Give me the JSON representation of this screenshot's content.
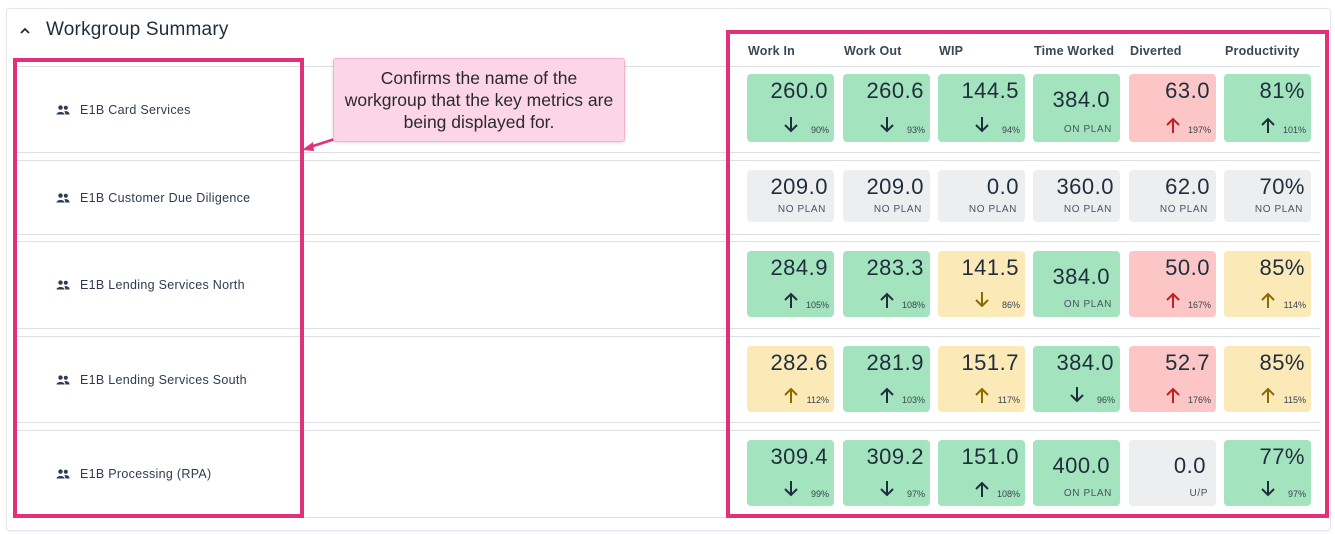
{
  "title": "Workgroup Summary",
  "columns": [
    "Work In",
    "Work Out",
    "WIP",
    "Time Worked",
    "Diverted",
    "Productivity"
  ],
  "callout": "Confirms the name of the workgroup that the key metrics are being displayed for.",
  "colors": {
    "highlight": "#e0317a",
    "callout_bg": "#fcd6e8",
    "green": "#a3e4bf",
    "grey": "#eceef0",
    "red": "#fcc6c6",
    "yellow": "#fbeab8"
  },
  "rows": [
    {
      "name": "E1B Card Services",
      "icon": "group-icon",
      "cells": [
        {
          "value": "260.0",
          "dir": "down",
          "pct": "90%",
          "color": "green"
        },
        {
          "value": "260.6",
          "dir": "down",
          "pct": "93%",
          "color": "green"
        },
        {
          "value": "144.5",
          "dir": "down",
          "pct": "94%",
          "color": "green"
        },
        {
          "value": "384.0",
          "sub": "ON PLAN",
          "color": "green"
        },
        {
          "value": "63.0",
          "dir": "up",
          "pct": "197%",
          "color": "red"
        },
        {
          "value": "81%",
          "dir": "up",
          "pct": "101%",
          "color": "green"
        }
      ]
    },
    {
      "name": "E1B Customer Due Diligence",
      "icon": "group-icon",
      "cells": [
        {
          "value": "209.0",
          "sub": "NO PLAN",
          "color": "grey"
        },
        {
          "value": "209.0",
          "sub": "NO PLAN",
          "color": "grey"
        },
        {
          "value": "0.0",
          "sub": "NO PLAN",
          "color": "grey"
        },
        {
          "value": "360.0",
          "sub": "NO PLAN",
          "color": "grey"
        },
        {
          "value": "62.0",
          "sub": "NO PLAN",
          "color": "grey"
        },
        {
          "value": "70%",
          "sub": "NO PLAN",
          "color": "grey"
        }
      ]
    },
    {
      "name": "E1B Lending Services North",
      "icon": "group-icon",
      "cells": [
        {
          "value": "284.9",
          "dir": "up",
          "pct": "105%",
          "color": "green"
        },
        {
          "value": "283.3",
          "dir": "up",
          "pct": "108%",
          "color": "green"
        },
        {
          "value": "141.5",
          "dir": "down",
          "pct": "86%",
          "color": "yellow"
        },
        {
          "value": "384.0",
          "sub": "ON PLAN",
          "color": "green"
        },
        {
          "value": "50.0",
          "dir": "up",
          "pct": "167%",
          "color": "red"
        },
        {
          "value": "85%",
          "dir": "up",
          "pct": "114%",
          "color": "yellow"
        }
      ]
    },
    {
      "name": "E1B Lending Services South",
      "icon": "group-icon",
      "cells": [
        {
          "value": "282.6",
          "dir": "up",
          "pct": "112%",
          "color": "yellow"
        },
        {
          "value": "281.9",
          "dir": "up",
          "pct": "103%",
          "color": "green"
        },
        {
          "value": "151.7",
          "dir": "up",
          "pct": "117%",
          "color": "yellow"
        },
        {
          "value": "384.0",
          "dir": "down",
          "pct": "96%",
          "color": "green"
        },
        {
          "value": "52.7",
          "dir": "up",
          "pct": "176%",
          "color": "red"
        },
        {
          "value": "85%",
          "dir": "up",
          "pct": "115%",
          "color": "yellow"
        }
      ]
    },
    {
      "name": "E1B Processing (RPA)",
      "icon": "group-icon",
      "cells": [
        {
          "value": "309.4",
          "dir": "down",
          "pct": "99%",
          "color": "green"
        },
        {
          "value": "309.2",
          "dir": "down",
          "pct": "97%",
          "color": "green"
        },
        {
          "value": "151.0",
          "dir": "up",
          "pct": "108%",
          "color": "green"
        },
        {
          "value": "400.0",
          "sub": "ON PLAN",
          "color": "green"
        },
        {
          "value": "0.0",
          "sub": "U/P",
          "color": "grey"
        },
        {
          "value": "77%",
          "dir": "down",
          "pct": "97%",
          "color": "green"
        }
      ]
    }
  ]
}
